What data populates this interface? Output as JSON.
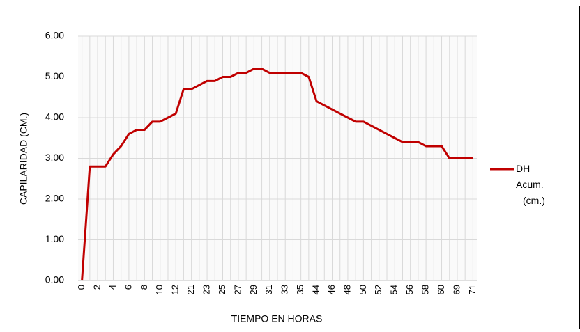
{
  "chart_data": {
    "type": "line",
    "x_label": "TIEMPO EN HORAS",
    "y_label": "CAPILARIDAD (CM.)",
    "categories": [
      "0",
      null,
      "2",
      null,
      "4",
      null,
      "6",
      null,
      "8",
      null,
      "10",
      null,
      "12",
      null,
      "21",
      null,
      "23",
      null,
      "25",
      null,
      "27",
      null,
      "29",
      null,
      "31",
      null,
      "33",
      null,
      "35",
      null,
      "44",
      null,
      "46",
      null,
      "48",
      null,
      "50",
      null,
      "52",
      null,
      "54",
      null,
      "56",
      null,
      "58",
      null,
      "60",
      null,
      "69",
      null,
      "71"
    ],
    "series": [
      {
        "name": "DH Acum. (cm.)",
        "color": "#c00000",
        "values": [
          0,
          2.8,
          2.8,
          2.8,
          3.1,
          3.3,
          3.6,
          3.7,
          3.7,
          3.9,
          3.9,
          4.0,
          4.1,
          4.7,
          4.7,
          4.8,
          4.9,
          4.9,
          5.0,
          5.0,
          5.1,
          5.1,
          5.2,
          5.2,
          5.1,
          5.1,
          5.1,
          5.1,
          5.1,
          5.0,
          4.4,
          4.3,
          4.2,
          4.1,
          4.0,
          3.9,
          3.9,
          3.8,
          3.7,
          3.6,
          3.5,
          3.4,
          3.4,
          3.4,
          3.3,
          3.3,
          3.3,
          3.0,
          3.0,
          3.0,
          3.0
        ]
      }
    ],
    "ylim": [
      0,
      6
    ],
    "yticks": [
      {
        "value": 0,
        "label": "0.00"
      },
      {
        "value": 1,
        "label": "1.00"
      },
      {
        "value": 2,
        "label": "2.00"
      },
      {
        "value": 3,
        "label": "3.00"
      },
      {
        "value": 4,
        "label": "4.00"
      },
      {
        "value": 5,
        "label": "5.00"
      },
      {
        "value": 6,
        "label": "6.00"
      }
    ],
    "grid": true,
    "legend": "right"
  }
}
